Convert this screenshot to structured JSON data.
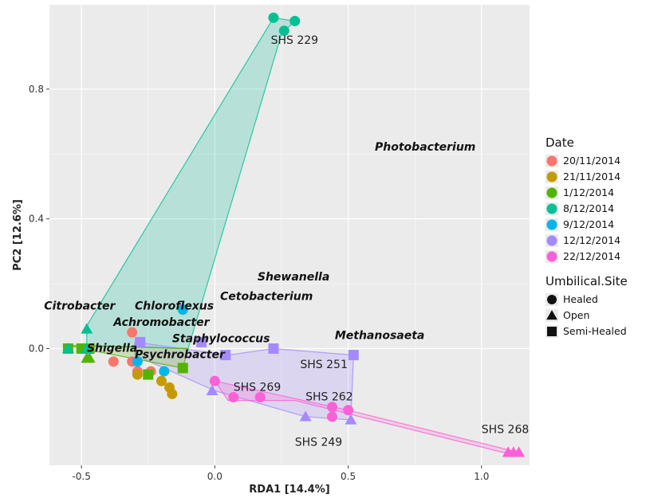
{
  "chart_data": {
    "type": "scatter",
    "xlabel": "RDA1 [14.4%]",
    "ylabel": "PC2 [12.6%]",
    "xlim": [
      -0.62,
      1.18
    ],
    "ylim": [
      -0.36,
      1.06
    ],
    "xticks": [
      -0.5,
      0.0,
      0.5,
      1.0
    ],
    "xtick_labels": [
      "-0.5",
      "0.0",
      "0.5",
      "1.0"
    ],
    "yticks": [
      0.0,
      0.4,
      0.8
    ],
    "ytick_labels": [
      "0.0",
      "0.4",
      "0.8"
    ],
    "grid": true,
    "legend_date": {
      "title": "Date",
      "placement": "right",
      "entries": [
        {
          "label": "20/11/2014",
          "color": "#F8766D"
        },
        {
          "label": "21/11/2014",
          "color": "#C49A00"
        },
        {
          "label": "1/12/2014",
          "color": "#53B400"
        },
        {
          "label": "8/12/2014",
          "color": "#00C094"
        },
        {
          "label": "9/12/2014",
          "color": "#00B6EB"
        },
        {
          "label": "12/12/2014",
          "color": "#A58AFF"
        },
        {
          "label": "22/12/2014",
          "color": "#FB61D7"
        }
      ]
    },
    "legend_site": {
      "title": "Umbilical.Site",
      "placement": "right",
      "entries": [
        {
          "label": "Healed",
          "shape": "circle"
        },
        {
          "label": "Open",
          "shape": "triangle"
        },
        {
          "label": "Semi-Healed",
          "shape": "square"
        }
      ]
    },
    "hulls": [
      {
        "label": "SHS 229",
        "color": "#00C094",
        "points": [
          [
            -0.48,
            0.07
          ],
          [
            0.22,
            1.02
          ],
          [
            0.3,
            1.01
          ],
          [
            0.25,
            0.97
          ],
          [
            -0.1,
            0.0
          ],
          [
            -0.48,
            0.01
          ]
        ]
      },
      {
        "label": "SHS 251",
        "color": "#A58AFF",
        "points": [
          [
            -0.3,
            0.02
          ],
          [
            0.05,
            -0.02
          ],
          [
            0.22,
            0.0
          ],
          [
            0.52,
            -0.02
          ],
          [
            0.51,
            -0.22
          ],
          [
            0.34,
            -0.21
          ],
          [
            0.0,
            -0.13
          ],
          [
            -0.3,
            -0.02
          ]
        ]
      },
      {
        "label": "SHS 268",
        "color": "#FB61D7",
        "points": [
          [
            0.0,
            -0.1
          ],
          [
            0.5,
            -0.19
          ],
          [
            1.14,
            -0.32
          ],
          [
            1.08,
            -0.32
          ],
          [
            0.3,
            -0.16
          ],
          [
            0.05,
            -0.16
          ]
        ]
      },
      {
        "label": "SHS 269",
        "color": "#53B400",
        "points": [
          [
            -0.55,
            0.01
          ],
          [
            -0.1,
            0.0
          ],
          [
            -0.12,
            -0.06
          ],
          [
            -0.5,
            0.0
          ]
        ]
      }
    ],
    "series": [
      {
        "color": "#F8766D",
        "points": [
          [
            -0.38,
            -0.04,
            "circle"
          ],
          [
            -0.31,
            -0.04,
            "circle"
          ],
          [
            -0.29,
            -0.07,
            "circle"
          ],
          [
            -0.31,
            0.05,
            "circle"
          ],
          [
            -0.24,
            -0.07,
            "circle"
          ]
        ]
      },
      {
        "color": "#C49A00",
        "points": [
          [
            -0.2,
            -0.1,
            "circle"
          ],
          [
            -0.17,
            -0.12,
            "circle"
          ],
          [
            -0.16,
            -0.14,
            "circle"
          ],
          [
            -0.29,
            -0.08,
            "circle"
          ]
        ]
      },
      {
        "color": "#53B400",
        "points": [
          [
            -0.55,
            0.0,
            "square"
          ],
          [
            -0.5,
            0.0,
            "square"
          ],
          [
            -0.47,
            0.0,
            "square"
          ],
          [
            -0.25,
            -0.08,
            "square"
          ],
          [
            -0.12,
            -0.06,
            "square"
          ],
          [
            -0.47,
            -0.03,
            "triangle"
          ],
          [
            -0.48,
            -0.03,
            "triangle"
          ]
        ]
      },
      {
        "color": "#00C094",
        "points": [
          [
            0.22,
            1.02,
            "circle"
          ],
          [
            0.26,
            0.98,
            "circle"
          ],
          [
            0.3,
            1.01,
            "circle"
          ],
          [
            -0.48,
            0.06,
            "triangle"
          ],
          [
            -0.55,
            0.0,
            "triangle"
          ],
          [
            -0.48,
            0.0,
            "triangle"
          ]
        ]
      },
      {
        "color": "#00B6EB",
        "points": [
          [
            -0.12,
            0.12,
            "circle"
          ],
          [
            -0.19,
            -0.07,
            "circle"
          ],
          [
            -0.29,
            -0.04,
            "circle"
          ]
        ]
      },
      {
        "color": "#A58AFF",
        "points": [
          [
            -0.28,
            0.02,
            "square"
          ],
          [
            -0.05,
            0.02,
            "square"
          ],
          [
            0.04,
            -0.02,
            "square"
          ],
          [
            0.22,
            0.0,
            "square"
          ],
          [
            0.52,
            -0.02,
            "square"
          ],
          [
            -0.01,
            -0.13,
            "triangle"
          ],
          [
            0.34,
            -0.21,
            "triangle"
          ],
          [
            0.51,
            -0.22,
            "triangle"
          ]
        ]
      },
      {
        "color": "#FB61D7",
        "points": [
          [
            0.0,
            -0.1,
            "circle"
          ],
          [
            0.07,
            -0.15,
            "circle"
          ],
          [
            0.17,
            -0.15,
            "circle"
          ],
          [
            0.44,
            -0.18,
            "circle"
          ],
          [
            0.44,
            -0.21,
            "circle"
          ],
          [
            0.5,
            -0.19,
            "circle"
          ],
          [
            1.1,
            -0.32,
            "triangle"
          ],
          [
            1.12,
            -0.32,
            "triangle"
          ],
          [
            1.14,
            -0.32,
            "triangle"
          ]
        ]
      }
    ],
    "genus_labels": [
      {
        "text": "Photobacterium",
        "x": 0.6,
        "y": 0.61
      },
      {
        "text": "Shewanella",
        "x": 0.16,
        "y": 0.21
      },
      {
        "text": "Cetobacterium",
        "x": 0.02,
        "y": 0.15
      },
      {
        "text": "Methanosaeta",
        "x": 0.45,
        "y": 0.03
      },
      {
        "text": "Citrobacter",
        "x": -0.64,
        "y": 0.12
      },
      {
        "text": "Chloroflexus",
        "x": -0.3,
        "y": 0.12
      },
      {
        "text": "Achromobacter",
        "x": -0.38,
        "y": 0.07
      },
      {
        "text": "Staphylococcus",
        "x": -0.16,
        "y": 0.02
      },
      {
        "text": "Shigella",
        "x": -0.48,
        "y": -0.01
      },
      {
        "text": "Psychrobacter",
        "x": -0.3,
        "y": -0.03
      }
    ],
    "site_labels": [
      {
        "text": "SHS 229",
        "x": 0.21,
        "y": 0.94
      },
      {
        "text": "SHS 251",
        "x": 0.32,
        "y": -0.06
      },
      {
        "text": "SHS 269",
        "x": 0.07,
        "y": -0.13
      },
      {
        "text": "SHS 262",
        "x": 0.34,
        "y": -0.16
      },
      {
        "text": "SHS 249",
        "x": 0.3,
        "y": -0.3
      },
      {
        "text": "SHS 268",
        "x": 1.0,
        "y": -0.26
      }
    ]
  }
}
